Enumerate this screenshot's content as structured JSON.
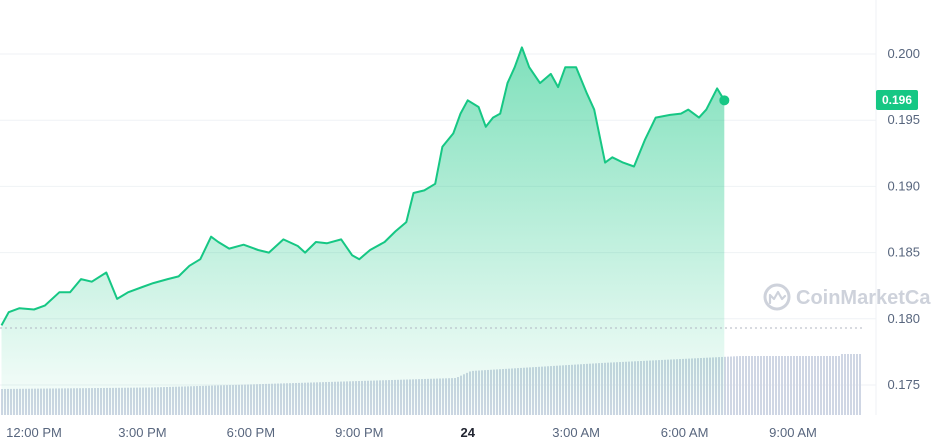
{
  "chart_data": {
    "type": "area",
    "watermark": "CoinMarketCap",
    "current_price_label": "0.196",
    "colors": {
      "line": "#16c784",
      "fill_top": "#16c784",
      "volume": "#cfd6e4",
      "grid": "#eff2f5",
      "axis_text": "#58667e"
    },
    "y_ticks": [
      "0.200",
      "0.195",
      "0.190",
      "0.185",
      "0.180",
      "0.175"
    ],
    "ylim": [
      0.1725,
      0.2035
    ],
    "x_ticks": [
      {
        "label": "12:00 PM",
        "t": 2,
        "bold": false
      },
      {
        "label": "3:00 PM",
        "t": 5,
        "bold": false
      },
      {
        "label": "6:00 PM",
        "t": 8,
        "bold": false
      },
      {
        "label": "9:00 PM",
        "t": 11,
        "bold": false
      },
      {
        "label": "24",
        "t": 14,
        "bold": true
      },
      {
        "label": "3:00 AM",
        "t": 17,
        "bold": false
      },
      {
        "label": "6:00 AM",
        "t": 20,
        "bold": false
      },
      {
        "label": "9:00 AM",
        "t": 23,
        "bold": false
      }
    ],
    "xlim": [
      1.1,
      24.75
    ],
    "series": [
      {
        "values": [
          [
            1.1,
            0.1795
          ],
          [
            1.3,
            0.1805
          ],
          [
            1.6,
            0.1808
          ],
          [
            2.0,
            0.1807
          ],
          [
            2.3,
            0.181
          ],
          [
            2.7,
            0.182
          ],
          [
            3.0,
            0.182
          ],
          [
            3.3,
            0.183
          ],
          [
            3.6,
            0.1828
          ],
          [
            4.0,
            0.1835
          ],
          [
            4.3,
            0.1815
          ],
          [
            4.6,
            0.182
          ],
          [
            5.0,
            0.1824
          ],
          [
            5.3,
            0.1827
          ],
          [
            5.7,
            0.183
          ],
          [
            6.0,
            0.1832
          ],
          [
            6.3,
            0.184
          ],
          [
            6.6,
            0.1845
          ],
          [
            6.9,
            0.1862
          ],
          [
            7.1,
            0.1858
          ],
          [
            7.4,
            0.1853
          ],
          [
            7.8,
            0.1856
          ],
          [
            8.2,
            0.1852
          ],
          [
            8.5,
            0.185
          ],
          [
            8.9,
            0.186
          ],
          [
            9.3,
            0.1855
          ],
          [
            9.5,
            0.185
          ],
          [
            9.8,
            0.1858
          ],
          [
            10.1,
            0.1857
          ],
          [
            10.5,
            0.186
          ],
          [
            10.8,
            0.1848
          ],
          [
            11.0,
            0.1845
          ],
          [
            11.3,
            0.1852
          ],
          [
            11.7,
            0.1858
          ],
          [
            12.0,
            0.1866
          ],
          [
            12.3,
            0.1873
          ],
          [
            12.5,
            0.1895
          ],
          [
            12.8,
            0.1897
          ],
          [
            13.1,
            0.1902
          ],
          [
            13.3,
            0.193
          ],
          [
            13.6,
            0.194
          ],
          [
            13.8,
            0.1955
          ],
          [
            14.0,
            0.1965
          ],
          [
            14.3,
            0.196
          ],
          [
            14.5,
            0.1945
          ],
          [
            14.7,
            0.1952
          ],
          [
            14.9,
            0.1955
          ],
          [
            15.1,
            0.1978
          ],
          [
            15.3,
            0.199
          ],
          [
            15.5,
            0.2005
          ],
          [
            15.7,
            0.199
          ],
          [
            16.0,
            0.1978
          ],
          [
            16.3,
            0.1985
          ],
          [
            16.5,
            0.1975
          ],
          [
            16.7,
            0.199
          ],
          [
            17.0,
            0.199
          ],
          [
            17.3,
            0.197
          ],
          [
            17.5,
            0.1958
          ],
          [
            17.8,
            0.1918
          ],
          [
            18.0,
            0.1922
          ],
          [
            18.3,
            0.1918
          ],
          [
            18.6,
            0.1915
          ],
          [
            18.9,
            0.1935
          ],
          [
            19.2,
            0.1952
          ],
          [
            19.6,
            0.1954
          ],
          [
            19.9,
            0.1955
          ],
          [
            20.1,
            0.1958
          ],
          [
            20.4,
            0.1952
          ],
          [
            20.6,
            0.1958
          ],
          [
            20.9,
            0.1974
          ],
          [
            21.1,
            0.1965
          ]
        ]
      }
    ]
  }
}
